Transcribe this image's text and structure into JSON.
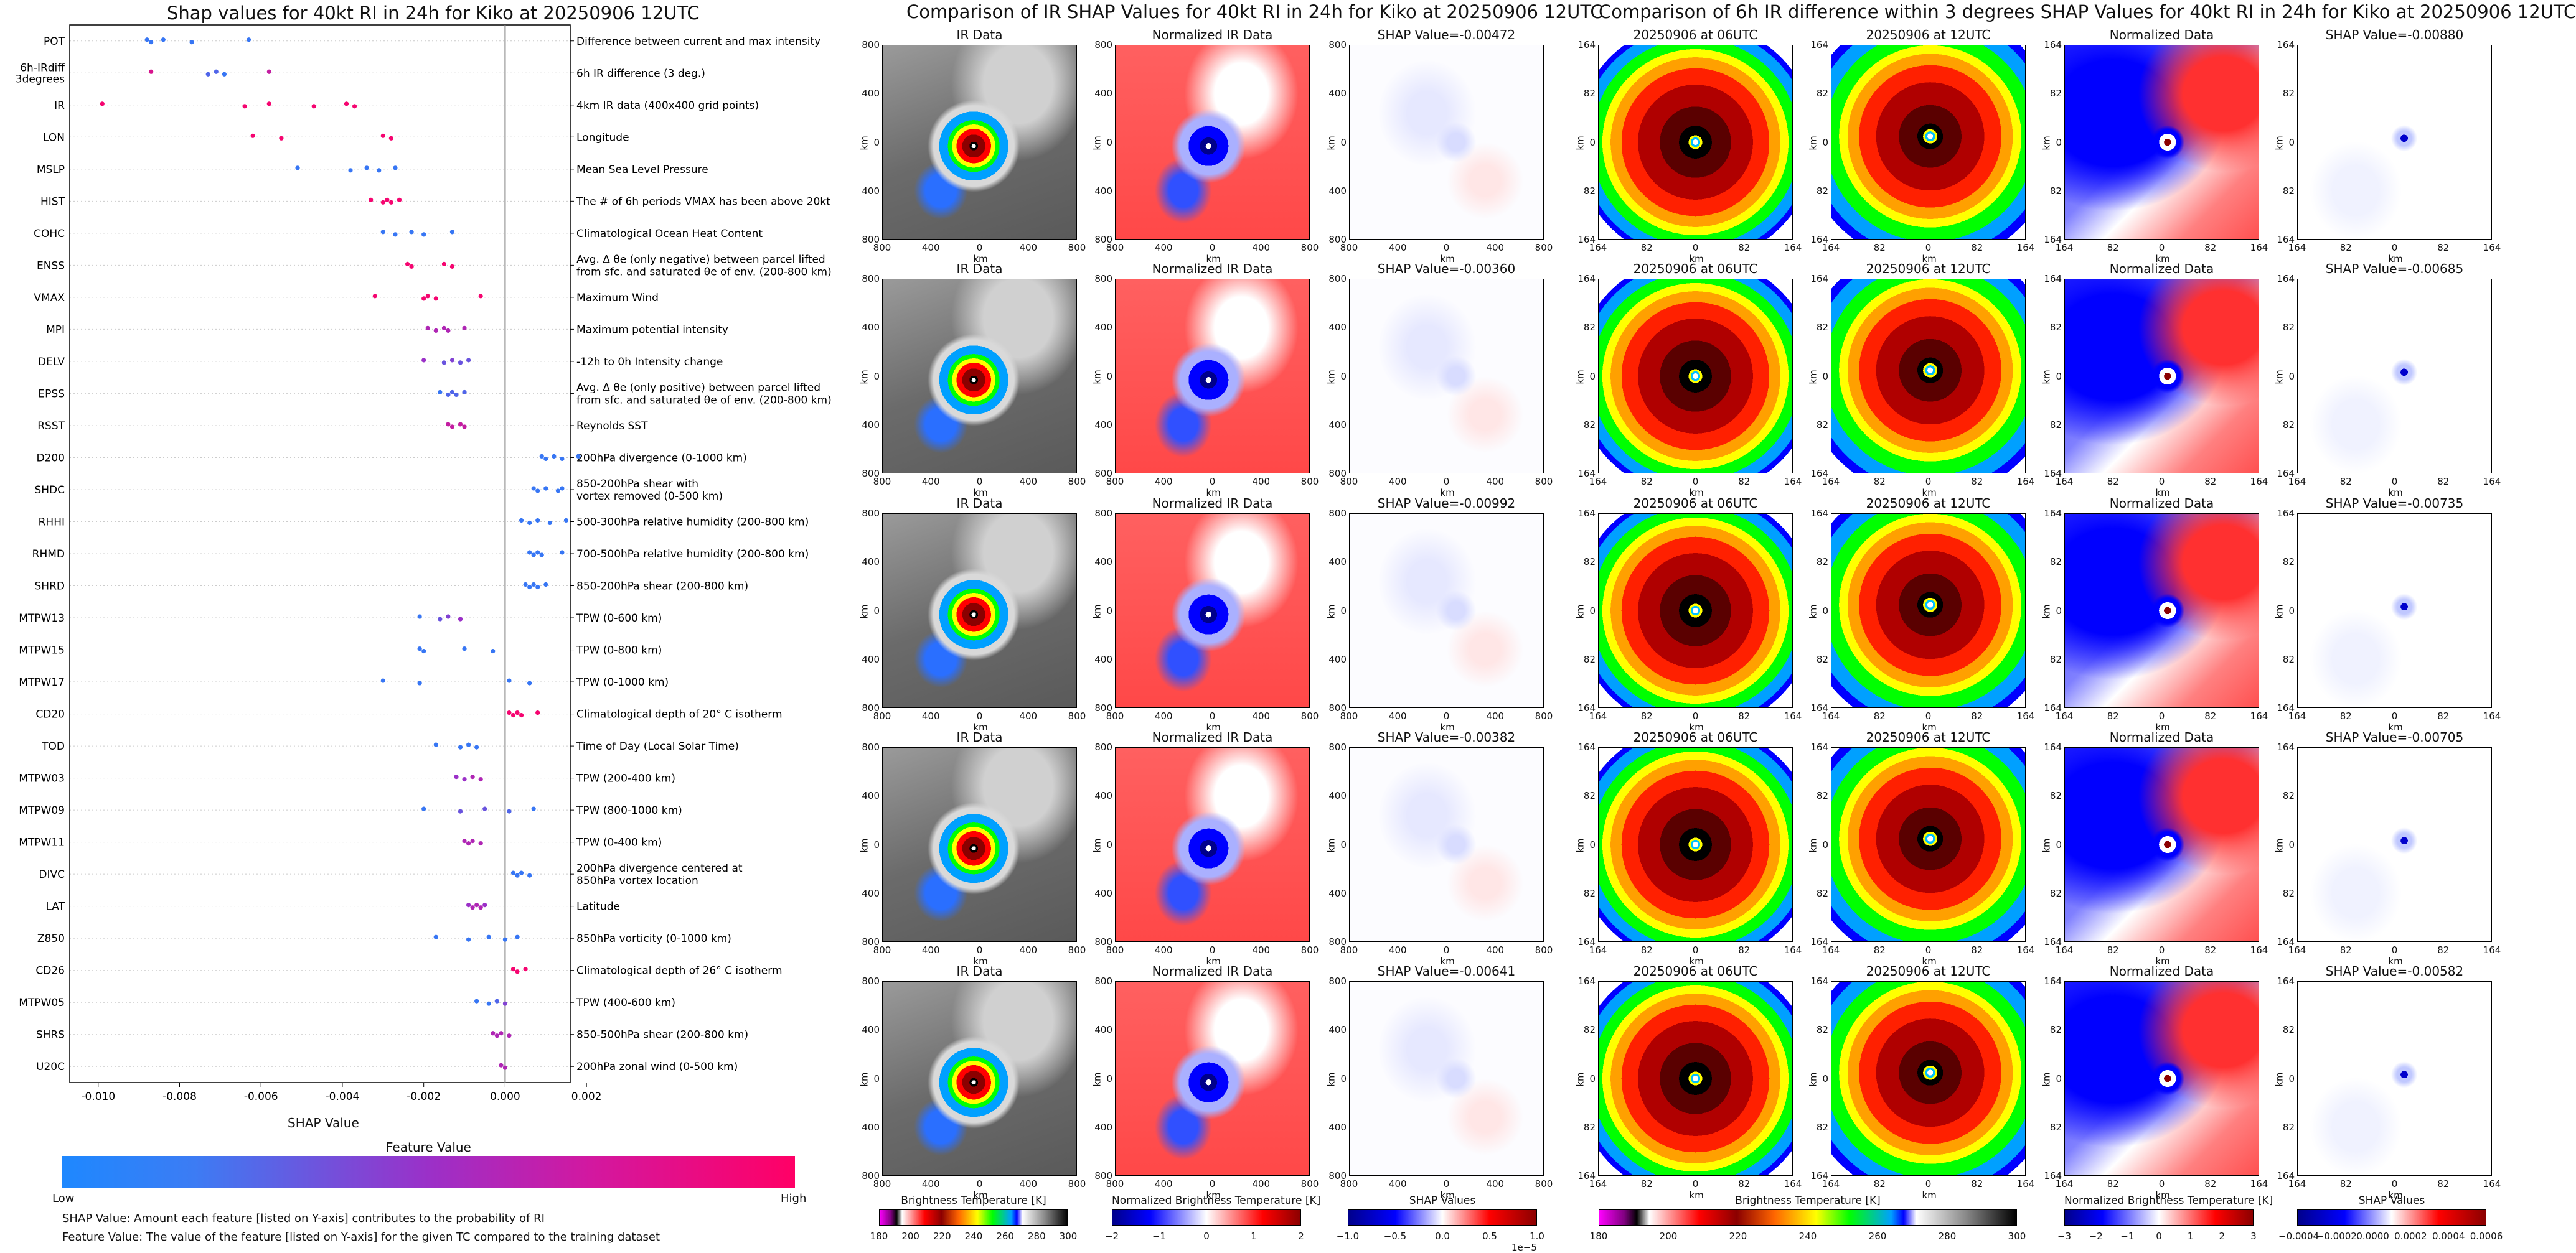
{
  "left": {
    "title": "Shap values for 40kt RI in 24h for Kiko at 20250906 12UTC",
    "xlabel": "SHAP Value",
    "colorbar_title": "Feature Value",
    "colorbar_low": "Low",
    "colorbar_high": "High",
    "note1": "SHAP Value: Amount each feature [listed on Y-axis] contributes to the probability of RI",
    "note2": "Feature Value: The value of the feature [listed on Y-axis] for the given TC compared to the training dataset"
  },
  "chart_data": {
    "type": "scatter",
    "title": "Shap values for 40kt RI in 24h for Kiko at 20250906 12UTC",
    "xlabel": "SHAP Value",
    "xlim": [
      -0.0107,
      0.0016
    ],
    "xticks": [
      "-0.010",
      "-0.008",
      "-0.006",
      "-0.004",
      "-0.002",
      "0.000",
      "0.002"
    ],
    "xtick_values": [
      -0.01,
      -0.008,
      -0.006,
      -0.004,
      -0.002,
      0.0,
      0.002
    ],
    "colors": {
      "low": "#1e88ff",
      "mid": "#9b30c8",
      "high": "#ff0066"
    },
    "features": [
      {
        "name": "POT",
        "desc": "Difference between current and max intensity",
        "points": [
          [
            -0.0088,
            0.1
          ],
          [
            -0.0087,
            0.1
          ],
          [
            -0.0084,
            0.1
          ],
          [
            -0.0077,
            0.1
          ],
          [
            -0.0063,
            0.1
          ]
        ]
      },
      {
        "name": "6h-IRdiff\n3degrees",
        "desc": "6h IR difference (3 deg.)",
        "points": [
          [
            -0.0087,
            0.8
          ],
          [
            -0.0073,
            0.2
          ],
          [
            -0.0071,
            0.2
          ],
          [
            -0.0069,
            0.1
          ],
          [
            -0.0058,
            0.7
          ]
        ]
      },
      {
        "name": "IR",
        "desc": "4km IR data (400x400 grid points)",
        "points": [
          [
            -0.0099,
            0.95
          ],
          [
            -0.0064,
            0.95
          ],
          [
            -0.0058,
            0.95
          ],
          [
            -0.0047,
            0.95
          ],
          [
            -0.0039,
            0.95
          ],
          [
            -0.0037,
            0.95
          ]
        ]
      },
      {
        "name": "LON",
        "desc": "Longitude",
        "points": [
          [
            -0.0062,
            0.95
          ],
          [
            -0.0055,
            0.95
          ],
          [
            -0.003,
            0.95
          ],
          [
            -0.0028,
            0.95
          ]
        ]
      },
      {
        "name": "MSLP",
        "desc": "Mean Sea Level Pressure",
        "points": [
          [
            -0.0051,
            0.1
          ],
          [
            -0.0038,
            0.1
          ],
          [
            -0.0034,
            0.1
          ],
          [
            -0.0031,
            0.1
          ],
          [
            -0.0027,
            0.1
          ]
        ]
      },
      {
        "name": "HIST",
        "desc": "The # of 6h periods VMAX has been above 20kt",
        "points": [
          [
            -0.0033,
            0.95
          ],
          [
            -0.003,
            0.95
          ],
          [
            -0.0029,
            0.95
          ],
          [
            -0.0028,
            0.95
          ],
          [
            -0.0026,
            0.95
          ]
        ]
      },
      {
        "name": "COHC",
        "desc": "Climatological Ocean Heat Content",
        "points": [
          [
            -0.003,
            0.1
          ],
          [
            -0.0027,
            0.1
          ],
          [
            -0.0023,
            0.1
          ],
          [
            -0.002,
            0.1
          ],
          [
            -0.0013,
            0.1
          ]
        ]
      },
      {
        "name": "ENSS",
        "desc": "Avg. Δ θe (only negative) between parcel lifted\nfrom sfc. and saturated θe of env. (200-800 km)",
        "points": [
          [
            -0.0024,
            0.95
          ],
          [
            -0.0023,
            0.95
          ],
          [
            -0.0015,
            0.95
          ],
          [
            -0.0013,
            0.95
          ]
        ]
      },
      {
        "name": "VMAX",
        "desc": "Maximum Wind",
        "points": [
          [
            -0.0032,
            0.95
          ],
          [
            -0.002,
            0.95
          ],
          [
            -0.0019,
            0.95
          ],
          [
            -0.0017,
            0.95
          ],
          [
            -0.0006,
            0.95
          ]
        ]
      },
      {
        "name": "MPI",
        "desc": "Maximum potential intensity",
        "points": [
          [
            -0.0019,
            0.6
          ],
          [
            -0.0017,
            0.6
          ],
          [
            -0.0015,
            0.6
          ],
          [
            -0.0014,
            0.6
          ],
          [
            -0.001,
            0.6
          ]
        ]
      },
      {
        "name": "DELV",
        "desc": "-12h to 0h Intensity change",
        "points": [
          [
            -0.002,
            0.5
          ],
          [
            -0.0015,
            0.3
          ],
          [
            -0.0013,
            0.4
          ],
          [
            -0.0011,
            0.3
          ],
          [
            -0.0009,
            0.3
          ]
        ]
      },
      {
        "name": "EPSS",
        "desc": "Avg. Δ θe (only positive) between parcel lifted\nfrom sfc. and saturated θe of env. (200-800 km)",
        "points": [
          [
            -0.0016,
            0.1
          ],
          [
            -0.0014,
            0.2
          ],
          [
            -0.0013,
            0.2
          ],
          [
            -0.0012,
            0.2
          ],
          [
            -0.001,
            0.2
          ]
        ]
      },
      {
        "name": "RSST",
        "desc": "Reynolds SST",
        "points": [
          [
            -0.0014,
            0.7
          ],
          [
            -0.0013,
            0.7
          ],
          [
            -0.0011,
            0.7
          ],
          [
            -0.001,
            0.7
          ]
        ]
      },
      {
        "name": "D200",
        "desc": "200hPa divergence (0-1000 km)",
        "points": [
          [
            0.0009,
            0.1
          ],
          [
            0.001,
            0.1
          ],
          [
            0.0012,
            0.1
          ],
          [
            0.0014,
            0.1
          ],
          [
            0.0018,
            0.1
          ]
        ]
      },
      {
        "name": "SHDC",
        "desc": "850-200hPa shear with\nvortex removed (0-500 km)",
        "points": [
          [
            0.0007,
            0.1
          ],
          [
            0.0008,
            0.1
          ],
          [
            0.001,
            0.1
          ],
          [
            0.0013,
            0.1
          ],
          [
            0.0014,
            0.1
          ]
        ]
      },
      {
        "name": "RHHI",
        "desc": "500-300hPa relative humidity (200-800 km)",
        "points": [
          [
            0.0004,
            0.1
          ],
          [
            0.0006,
            0.1
          ],
          [
            0.0008,
            0.1
          ],
          [
            0.0011,
            0.1
          ],
          [
            0.0015,
            0.1
          ]
        ]
      },
      {
        "name": "RHMD",
        "desc": "700-500hPa relative humidity (200-800 km)",
        "points": [
          [
            0.0006,
            0.1
          ],
          [
            0.0007,
            0.1
          ],
          [
            0.0008,
            0.1
          ],
          [
            0.0009,
            0.1
          ],
          [
            0.0014,
            0.1
          ]
        ]
      },
      {
        "name": "SHRD",
        "desc": "850-200hPa shear (200-800 km)",
        "points": [
          [
            0.0005,
            0.1
          ],
          [
            0.0006,
            0.1
          ],
          [
            0.0007,
            0.1
          ],
          [
            0.0008,
            0.1
          ],
          [
            0.001,
            0.1
          ]
        ]
      },
      {
        "name": "MTPW13",
        "desc": "TPW (0-600 km)",
        "points": [
          [
            -0.0021,
            0.1
          ],
          [
            -0.0016,
            0.3
          ],
          [
            -0.0014,
            0.4
          ],
          [
            -0.0011,
            0.5
          ]
        ]
      },
      {
        "name": "MTPW15",
        "desc": "TPW (0-800 km)",
        "points": [
          [
            -0.0021,
            0.1
          ],
          [
            -0.002,
            0.1
          ],
          [
            -0.001,
            0.1
          ],
          [
            -0.0003,
            0.1
          ]
        ]
      },
      {
        "name": "MTPW17",
        "desc": "TPW (0-1000 km)",
        "points": [
          [
            -0.003,
            0.1
          ],
          [
            -0.0021,
            0.1
          ],
          [
            0.0001,
            0.1
          ],
          [
            0.0006,
            0.1
          ]
        ]
      },
      {
        "name": "CD20",
        "desc": "Climatological depth of 20° C isotherm",
        "points": [
          [
            0.0001,
            0.95
          ],
          [
            0.0002,
            0.95
          ],
          [
            0.0003,
            0.95
          ],
          [
            0.0004,
            0.95
          ],
          [
            0.0008,
            0.95
          ]
        ]
      },
      {
        "name": "TOD",
        "desc": "Time of Day (Local Solar Time)",
        "points": [
          [
            -0.0017,
            0.1
          ],
          [
            -0.0011,
            0.1
          ],
          [
            -0.0009,
            0.1
          ],
          [
            -0.0007,
            0.1
          ]
        ]
      },
      {
        "name": "MTPW03",
        "desc": "TPW (200-400 km)",
        "points": [
          [
            -0.0012,
            0.5
          ],
          [
            -0.001,
            0.5
          ],
          [
            -0.0008,
            0.6
          ],
          [
            -0.0006,
            0.6
          ]
        ]
      },
      {
        "name": "MTPW09",
        "desc": "TPW (800-1000 km)",
        "points": [
          [
            -0.002,
            0.1
          ],
          [
            -0.0011,
            0.3
          ],
          [
            -0.0005,
            0.3
          ],
          [
            0.0001,
            0.2
          ],
          [
            0.0007,
            0.1
          ]
        ]
      },
      {
        "name": "MTPW11",
        "desc": "TPW (0-400 km)",
        "points": [
          [
            -0.001,
            0.6
          ],
          [
            -0.0009,
            0.6
          ],
          [
            -0.0008,
            0.6
          ],
          [
            -0.0006,
            0.6
          ]
        ]
      },
      {
        "name": "DIVC",
        "desc": "200hPa divergence centered at\n850hPa vortex location",
        "points": [
          [
            0.0002,
            0.1
          ],
          [
            0.0003,
            0.1
          ],
          [
            0.0004,
            0.1
          ],
          [
            0.0006,
            0.1
          ]
        ]
      },
      {
        "name": "LAT",
        "desc": "Latitude",
        "points": [
          [
            -0.0009,
            0.5
          ],
          [
            -0.0008,
            0.6
          ],
          [
            -0.0007,
            0.6
          ],
          [
            -0.0006,
            0.6
          ],
          [
            -0.0005,
            0.5
          ]
        ]
      },
      {
        "name": "Z850",
        "desc": "850hPa vorticity (0-1000 km)",
        "points": [
          [
            -0.0017,
            0.1
          ],
          [
            -0.0009,
            0.1
          ],
          [
            -0.0004,
            0.1
          ],
          [
            0.0,
            0.1
          ],
          [
            0.0003,
            0.1
          ]
        ]
      },
      {
        "name": "CD26",
        "desc": "Climatological depth of 26° C isotherm",
        "points": [
          [
            0.0002,
            0.95
          ],
          [
            0.0003,
            0.95
          ],
          [
            0.0005,
            0.95
          ]
        ]
      },
      {
        "name": "MTPW05",
        "desc": "TPW (400-600 km)",
        "points": [
          [
            -0.0007,
            0.1
          ],
          [
            -0.0004,
            0.1
          ],
          [
            -0.0002,
            0.2
          ],
          [
            0.0,
            0.4
          ]
        ]
      },
      {
        "name": "SHRS",
        "desc": "850-500hPa shear (200-800 km)",
        "points": [
          [
            -0.0003,
            0.6
          ],
          [
            -0.0002,
            0.6
          ],
          [
            -0.0001,
            0.6
          ],
          [
            0.0001,
            0.6
          ]
        ]
      },
      {
        "name": "U20C",
        "desc": "200hPa zonal wind (0-500 km)",
        "points": [
          [
            -0.0001,
            0.6
          ],
          [
            0.0,
            0.6
          ]
        ]
      }
    ]
  },
  "middle": {
    "title": "Comparison of IR SHAP Values for 40kt RI in 24h for Kiko at 20250906 12UTC",
    "col_titles": [
      "IR Data",
      "Normalized IR Data"
    ],
    "shap_titles": [
      "SHAP Value=-0.00472",
      "SHAP Value=-0.00360",
      "SHAP Value=-0.00992",
      "SHAP Value=-0.00382",
      "SHAP Value=-0.00641"
    ],
    "axis_label": "km",
    "ticks": [
      "800",
      "400",
      "0",
      "400",
      "800"
    ],
    "cb1_title": "Brightness Temperature [K]",
    "cb1_ticks": [
      "180",
      "200",
      "220",
      "240",
      "260",
      "280",
      "300"
    ],
    "cb2_title": "Normalized Brightness Temperature [K]",
    "cb2_ticks": [
      "−2",
      "−1",
      "0",
      "1",
      "2"
    ],
    "cb3_title": "SHAP Values",
    "cb3_ticks": [
      "−1.0",
      "−0.5",
      "0.0",
      "0.5",
      "1.0"
    ],
    "cb3_exp": "1e−5"
  },
  "right": {
    "title": "Comparison of 6h IR difference within 3 degrees SHAP Values for 40kt RI in 24h for Kiko at 20250906 12UTC",
    "col_titles": [
      "20250906 at 06UTC",
      "20250906 at 12UTC",
      "Normalized Data"
    ],
    "shap_titles": [
      "SHAP Value=-0.00880",
      "SHAP Value=-0.00685",
      "SHAP Value=-0.00735",
      "SHAP Value=-0.00705",
      "SHAP Value=-0.00582"
    ],
    "axis_label": "km",
    "ticks": [
      "164",
      "82",
      "0",
      "82",
      "164"
    ],
    "cb1_title": "Brightness Temperature [K]",
    "cb1_ticks": [
      "180",
      "200",
      "220",
      "240",
      "260",
      "280",
      "300"
    ],
    "cb2_title": "Normalized Brightness Temperature [K]",
    "cb2_ticks": [
      "−3",
      "−2",
      "−1",
      "0",
      "1",
      "2",
      "3"
    ],
    "cb3_title": "SHAP Values",
    "cb3_ticks": [
      "−0.0004",
      "−0.0002",
      "0.0000",
      "0.0002",
      "0.0004",
      "0.0006"
    ]
  }
}
